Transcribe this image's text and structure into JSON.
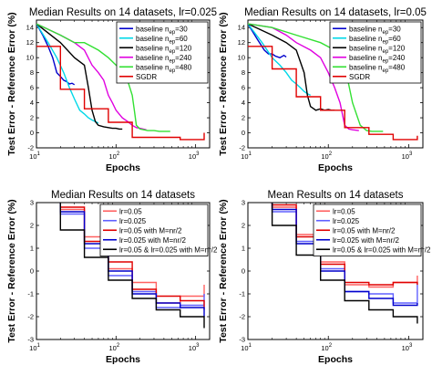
{
  "chart_data": [
    {
      "panel": "top-left",
      "type": "line",
      "title": "Median Results on 14 datasets, lr=0.025",
      "xlabel": "Epochs",
      "ylabel": "Test Error - Reference Error (%)",
      "xscale": "log",
      "xlim": [
        10,
        1500
      ],
      "ylim": [
        -2,
        15
      ],
      "xticks": [
        10,
        100,
        1000
      ],
      "yticks": [
        -2,
        0,
        2,
        4,
        6,
        8,
        10,
        12,
        14
      ],
      "legend_position": "top-right",
      "series": [
        {
          "name": "baseline n_ep=30",
          "color": "#0000cc",
          "x": [
            10,
            12,
            14,
            16,
            17,
            18,
            20,
            22,
            24,
            26,
            28,
            30
          ],
          "y": [
            14.5,
            13,
            11.5,
            10,
            9,
            8,
            7.5,
            7,
            6.8,
            6.5,
            6.6,
            6.4
          ]
        },
        {
          "name": "baseline n_ep=60",
          "color": "#00d8e8",
          "x": [
            10,
            14,
            18,
            22,
            26,
            30,
            35,
            40,
            45,
            50,
            55,
            60
          ],
          "y": [
            14.5,
            12,
            10,
            8,
            6,
            4.5,
            3,
            2.5,
            2,
            1.7,
            1.5,
            1.3
          ]
        },
        {
          "name": "baseline n_ep=120",
          "color": "#000000",
          "x": [
            10,
            20,
            30,
            40,
            45,
            50,
            55,
            60,
            70,
            80,
            90,
            100,
            110,
            120
          ],
          "y": [
            14.5,
            12,
            10,
            9,
            6,
            3,
            1.5,
            1,
            0.8,
            0.7,
            0.6,
            0.6,
            0.5,
            0.5
          ]
        },
        {
          "name": "baseline n_ep=240",
          "color": "#e000e0",
          "x": [
            10,
            20,
            30,
            40,
            50,
            60,
            70,
            80,
            90,
            100,
            120,
            140,
            160,
            180,
            200,
            220,
            240
          ],
          "y": [
            14.5,
            13,
            12,
            11,
            9,
            8,
            7,
            5,
            4,
            3,
            2,
            1.5,
            1,
            0.7,
            0.6,
            0.5,
            0.4
          ]
        },
        {
          "name": "baseline n_ep=480",
          "color": "#33e033",
          "x": [
            10,
            20,
            30,
            40,
            60,
            80,
            100,
            130,
            160,
            170,
            180,
            200,
            250,
            300,
            350,
            400,
            480
          ],
          "y": [
            14.5,
            13,
            12,
            12,
            11,
            10,
            9,
            8,
            5,
            3,
            1,
            0.5,
            0.3,
            0.3,
            0.2,
            0.2,
            0.2
          ]
        },
        {
          "name": "SGDR",
          "color": "#e00000",
          "step": true,
          "x": [
            10,
            20,
            20,
            40,
            40,
            80,
            80,
            160,
            160,
            320,
            320,
            640,
            640,
            1280,
            1280
          ],
          "y": [
            11.5,
            11.5,
            5.8,
            5.8,
            3.2,
            3.2,
            1.4,
            1.4,
            -0.6,
            -0.6,
            -0.6,
            -0.6,
            -0.9,
            -0.9,
            0
          ]
        }
      ]
    },
    {
      "panel": "top-right",
      "type": "line",
      "title": "Median Results on 14 datasets, lr=0.05",
      "xlabel": "Epochs",
      "ylabel": "Test Error - Reference Error (%)",
      "xscale": "log",
      "xlim": [
        10,
        1500
      ],
      "ylim": [
        -2,
        15
      ],
      "xticks": [
        10,
        100,
        1000
      ],
      "yticks": [
        -2,
        0,
        2,
        4,
        6,
        8,
        10,
        12,
        14
      ],
      "legend_position": "top-right",
      "series": [
        {
          "name": "baseline n_ep=30",
          "color": "#0000cc",
          "x": [
            10,
            13,
            16,
            18,
            20,
            22,
            25,
            28,
            30
          ],
          "y": [
            14.5,
            12.5,
            11,
            10.5,
            10.5,
            10.2,
            10,
            10.3,
            10.1
          ]
        },
        {
          "name": "baseline n_ep=60",
          "color": "#00d8e8",
          "x": [
            10,
            15,
            20,
            25,
            30,
            35,
            40,
            45,
            50,
            55,
            60
          ],
          "y": [
            14.5,
            12,
            10,
            9,
            8,
            7,
            6.5,
            6,
            5.5,
            5.2,
            5
          ]
        },
        {
          "name": "baseline n_ep=120",
          "color": "#000000",
          "x": [
            10,
            20,
            30,
            40,
            50,
            55,
            60,
            70,
            80,
            90,
            100,
            110,
            120
          ],
          "y": [
            14.5,
            13,
            12,
            11,
            8,
            5,
            3.5,
            3,
            3.2,
            3,
            3.1,
            3,
            3
          ]
        },
        {
          "name": "baseline n_ep=240",
          "color": "#e000e0",
          "x": [
            10,
            20,
            30,
            40,
            60,
            80,
            100,
            120,
            140,
            160,
            180,
            200,
            240
          ],
          "y": [
            14.5,
            14,
            13,
            12,
            11,
            10,
            8,
            6,
            4,
            1,
            0.5,
            0.4,
            0.3
          ]
        },
        {
          "name": "baseline n_ep=480",
          "color": "#33e033",
          "x": [
            10,
            20,
            40,
            80,
            120,
            160,
            200,
            250,
            300,
            350,
            400,
            480
          ],
          "y": [
            14.5,
            14,
            13,
            12,
            11,
            9,
            4,
            1,
            0.3,
            0.2,
            0.2,
            0.2
          ]
        },
        {
          "name": "SGDR",
          "color": "#e00000",
          "step": true,
          "x": [
            10,
            20,
            20,
            40,
            40,
            80,
            80,
            160,
            160,
            320,
            320,
            640,
            640,
            1280,
            1280
          ],
          "y": [
            11.5,
            11.5,
            8.5,
            8.5,
            4.8,
            4.8,
            3.0,
            3.0,
            0.7,
            0.7,
            -0.2,
            -0.2,
            -0.9,
            -0.9,
            -0.4
          ]
        }
      ]
    },
    {
      "panel": "bottom-left",
      "type": "line",
      "title": "Median Results on 14 datasets",
      "xlabel": "Epochs",
      "ylabel": "Test Error - Reference Error (%)",
      "xscale": "log",
      "xlim": [
        10,
        1500
      ],
      "ylim": [
        -3,
        3
      ],
      "xticks": [
        10,
        100,
        1000
      ],
      "yticks": [
        -3,
        -2,
        -1,
        0,
        1,
        2,
        3
      ],
      "legend_position": "top-right",
      "series": [
        {
          "name": "lr=0.05",
          "color": "#ff6060",
          "step": true,
          "x": [
            20,
            20,
            40,
            40,
            80,
            80,
            160,
            160,
            320,
            320,
            640,
            640,
            1280,
            1280
          ],
          "y": [
            3,
            2.7,
            2.7,
            1.5,
            1.5,
            0.1,
            0.1,
            -0.5,
            -0.5,
            -1.4,
            -1.4,
            -1.1,
            -1.1,
            -0.6
          ]
        },
        {
          "name": "lr=0.025",
          "color": "#6060ff",
          "step": true,
          "x": [
            20,
            20,
            40,
            40,
            80,
            80,
            160,
            160,
            320,
            320,
            640,
            640,
            1280,
            1280
          ],
          "y": [
            3,
            2.5,
            2.5,
            1.0,
            1.0,
            -0.2,
            -0.2,
            -0.9,
            -0.9,
            -1.6,
            -1.6,
            -1.5,
            -1.5,
            -1.0
          ]
        },
        {
          "name": "lr=0.05 with M=nr/2",
          "color": "#e00000",
          "step": true,
          "x": [
            20,
            20,
            40,
            40,
            80,
            80,
            160,
            160,
            320,
            320,
            640,
            640,
            1280,
            1280
          ],
          "y": [
            3,
            2.8,
            2.8,
            1.3,
            1.3,
            0.4,
            0.4,
            -0.8,
            -0.8,
            -1.1,
            -1.1,
            -1.3,
            -1.3,
            -1.7
          ]
        },
        {
          "name": "lr=0.025 with M=nr/2",
          "color": "#0000cc",
          "step": true,
          "x": [
            20,
            20,
            40,
            40,
            80,
            80,
            160,
            160,
            320,
            320,
            640,
            640,
            1280,
            1280
          ],
          "y": [
            3,
            2.6,
            2.6,
            1.2,
            1.2,
            0.0,
            0.0,
            -1.0,
            -1.0,
            -1.4,
            -1.4,
            -1.6,
            -1.6,
            -2.0
          ]
        },
        {
          "name": "lr=0.05 & lr=0.025 with M=nr/2",
          "color": "#000000",
          "step": true,
          "x": [
            20,
            20,
            40,
            40,
            80,
            80,
            160,
            160,
            320,
            320,
            640,
            640,
            1280,
            1280
          ],
          "y": [
            3,
            1.8,
            1.8,
            0.6,
            0.6,
            -0.4,
            -0.4,
            -1.2,
            -1.2,
            -1.7,
            -1.7,
            -2.0,
            -2.0,
            -2.5
          ]
        }
      ]
    },
    {
      "panel": "bottom-right",
      "type": "line",
      "title": "Mean Results on 14 datasets",
      "xlabel": "Epochs",
      "ylabel": "Test Error - Reference Error (%)",
      "xscale": "log",
      "xlim": [
        10,
        1500
      ],
      "ylim": [
        -3,
        3
      ],
      "xticks": [
        10,
        100,
        1000
      ],
      "yticks": [
        -3,
        -2,
        -1,
        0,
        1,
        2,
        3
      ],
      "legend_position": "top-right",
      "series": [
        {
          "name": "lr=0.05",
          "color": "#ff6060",
          "step": true,
          "x": [
            20,
            20,
            40,
            40,
            80,
            80,
            160,
            160,
            320,
            320,
            640,
            640,
            1280,
            1280
          ],
          "y": [
            3,
            2.8,
            2.8,
            1.6,
            1.6,
            0.4,
            0.4,
            -0.6,
            -0.6,
            -0.7,
            -0.7,
            -0.5,
            -0.5,
            -0.2
          ]
        },
        {
          "name": "lr=0.025",
          "color": "#6060ff",
          "step": true,
          "x": [
            20,
            20,
            40,
            40,
            80,
            80,
            160,
            160,
            320,
            320,
            640,
            640,
            1280,
            1280
          ],
          "y": [
            3,
            2.6,
            2.6,
            1.3,
            1.3,
            0.1,
            0.1,
            -0.9,
            -0.9,
            -1.0,
            -1.0,
            -1.4,
            -1.4,
            -0.5
          ]
        },
        {
          "name": "lr=0.05 with M=nr/2",
          "color": "#e00000",
          "step": true,
          "x": [
            20,
            20,
            40,
            40,
            80,
            80,
            160,
            160,
            320,
            320,
            640,
            640,
            1280,
            1280
          ],
          "y": [
            3,
            2.9,
            2.9,
            1.5,
            1.5,
            0.3,
            0.3,
            -0.5,
            -0.5,
            -0.6,
            -0.6,
            -0.5,
            -0.5,
            -0.6
          ]
        },
        {
          "name": "lr=0.025 with M=nr/2",
          "color": "#0000cc",
          "step": true,
          "x": [
            20,
            20,
            40,
            40,
            80,
            80,
            160,
            160,
            320,
            320,
            640,
            640,
            1280,
            1280
          ],
          "y": [
            3,
            2.7,
            2.7,
            1.2,
            1.2,
            0.0,
            0.0,
            -0.9,
            -0.9,
            -1.2,
            -1.2,
            -1.5,
            -1.5,
            -1.4
          ]
        },
        {
          "name": "lr=0.05 & lr=0.025 with M=nr/2",
          "color": "#000000",
          "step": true,
          "x": [
            20,
            20,
            40,
            40,
            80,
            80,
            160,
            160,
            320,
            320,
            640,
            640,
            1280,
            1280
          ],
          "y": [
            3,
            2.0,
            2.0,
            0.7,
            0.7,
            -0.4,
            -0.4,
            -1.3,
            -1.3,
            -1.7,
            -1.7,
            -2.0,
            -2.0,
            -2.3
          ]
        }
      ]
    }
  ]
}
